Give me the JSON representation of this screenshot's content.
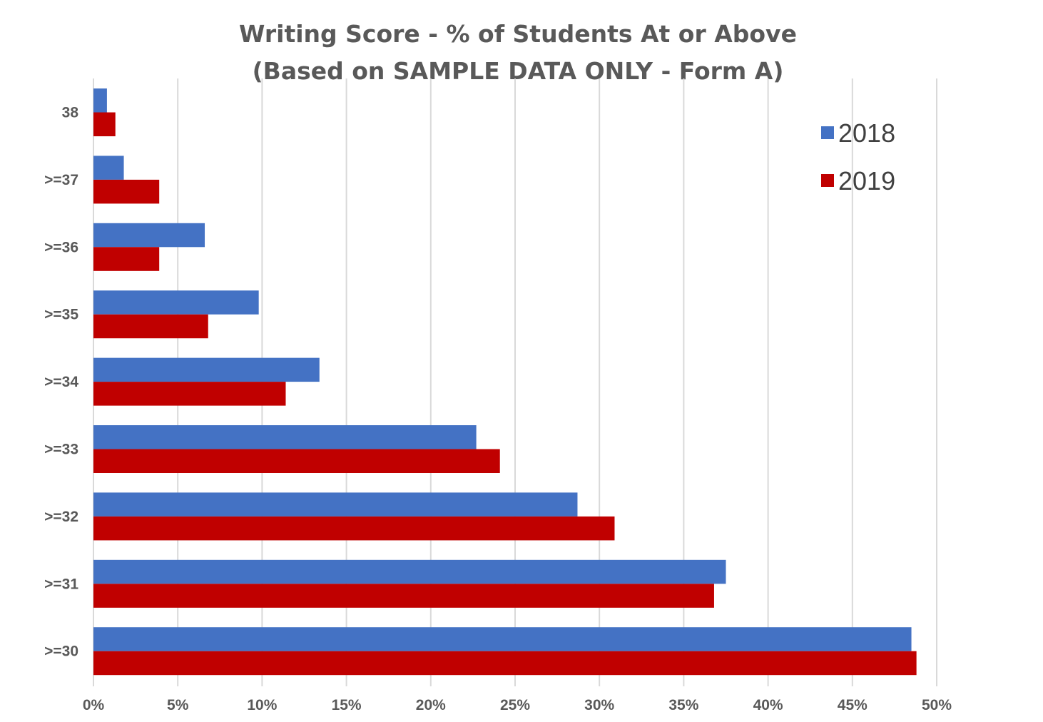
{
  "chart_data": {
    "type": "bar",
    "orientation": "horizontal",
    "title": [
      "Writing Score - % of Students At or Above",
      "(Based on SAMPLE DATA ONLY - Form A)"
    ],
    "categories": [
      "38",
      ">=37",
      ">=36",
      ">=35",
      ">=34",
      ">=33",
      ">=32",
      ">=31",
      ">=30"
    ],
    "series": [
      {
        "name": "2018",
        "color": "#4472c4",
        "values": [
          0.8,
          1.8,
          6.6,
          9.8,
          13.4,
          22.7,
          28.7,
          37.5,
          48.5
        ]
      },
      {
        "name": "2019",
        "color": "#c00000",
        "values": [
          1.3,
          3.9,
          3.9,
          6.8,
          11.4,
          24.1,
          30.9,
          36.8,
          48.8
        ]
      }
    ],
    "xlim": [
      0,
      50
    ],
    "xticks": [
      "0%",
      "5%",
      "10%",
      "15%",
      "20%",
      "25%",
      "30%",
      "35%",
      "40%",
      "45%",
      "50%"
    ],
    "xlabel": "",
    "ylabel": "",
    "grid": true,
    "legend_position": "top-right"
  }
}
